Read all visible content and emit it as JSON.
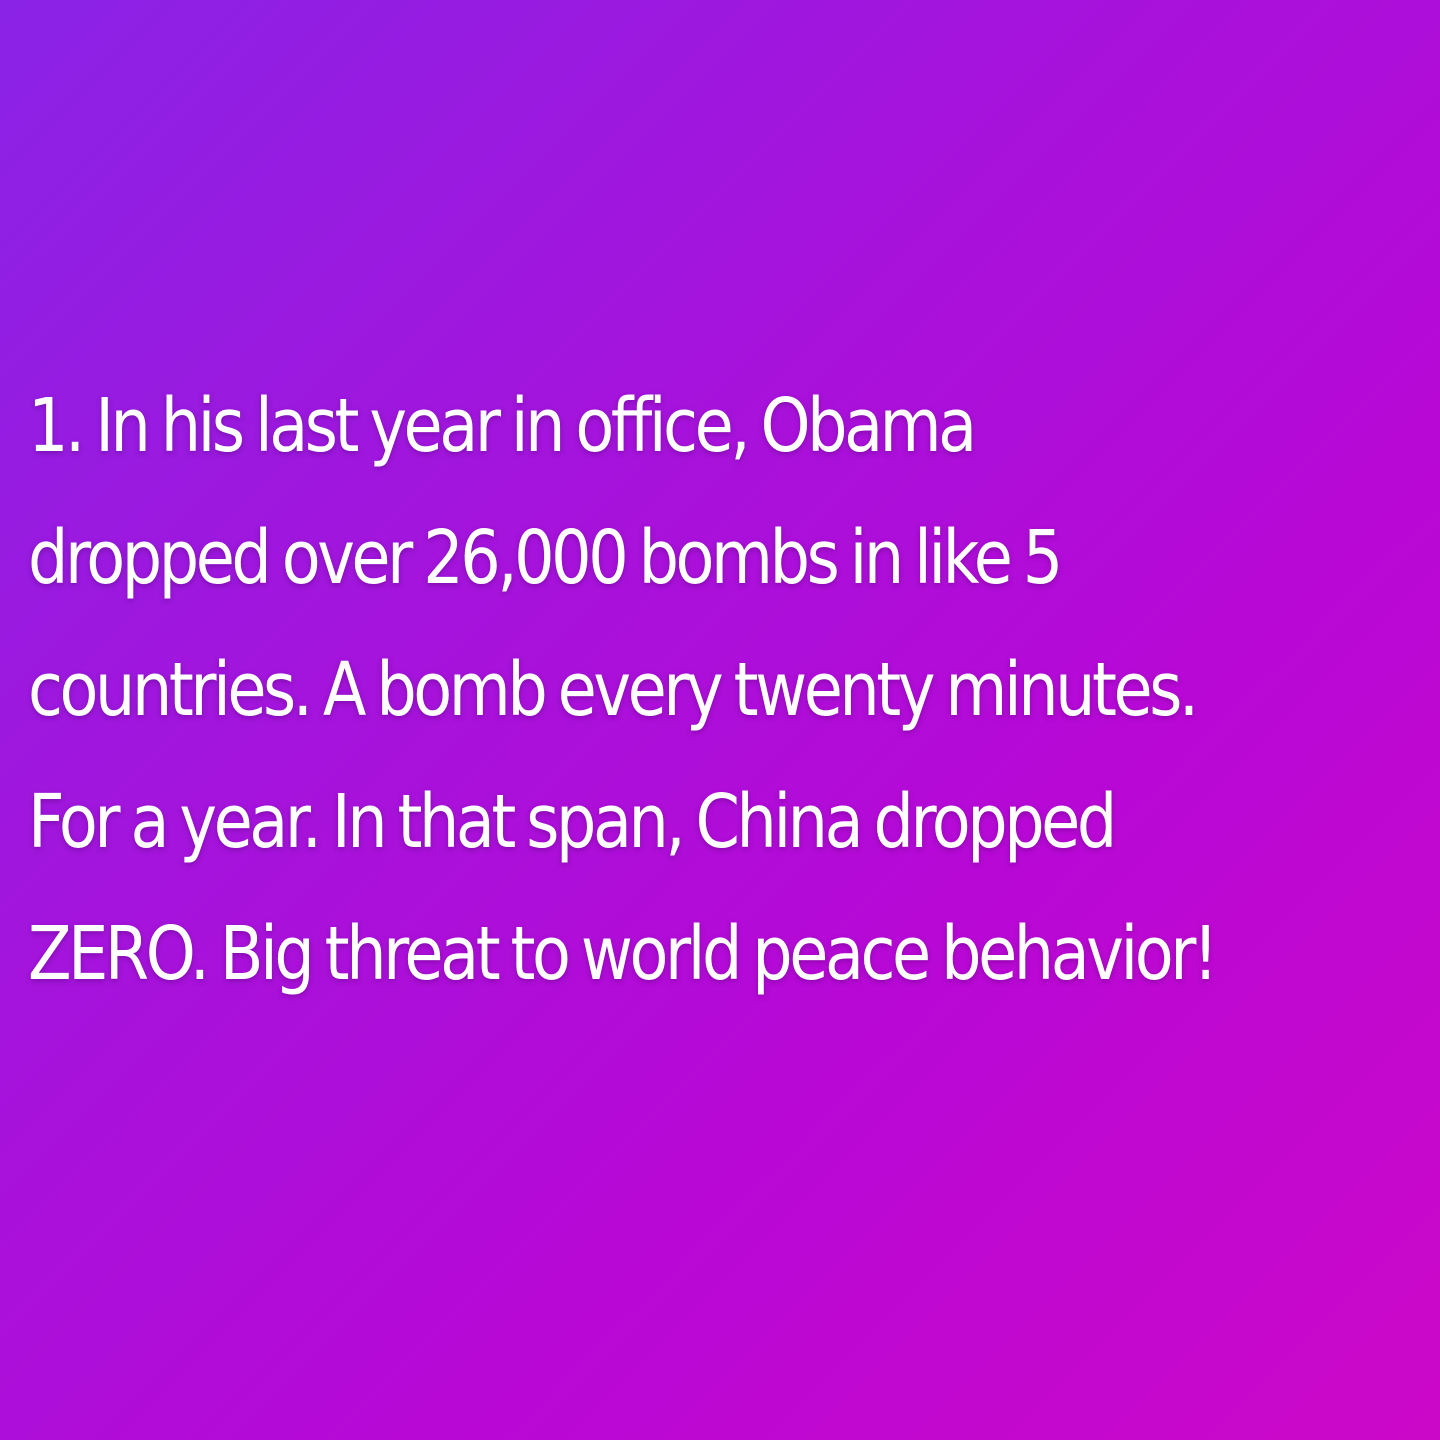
{
  "background": {
    "gradient_start": "#8a23e6",
    "gradient_end": "#cc08c8"
  },
  "text_color": "#ffffff",
  "post": {
    "lines": [
      "1. In his last year in office, Obama",
      "dropped over 26,000 bombs in like 5",
      "countries. A bomb every twenty minutes.",
      "For a year. In that span, China dropped",
      "ZERO. Big threat to world peace behavior!"
    ]
  }
}
